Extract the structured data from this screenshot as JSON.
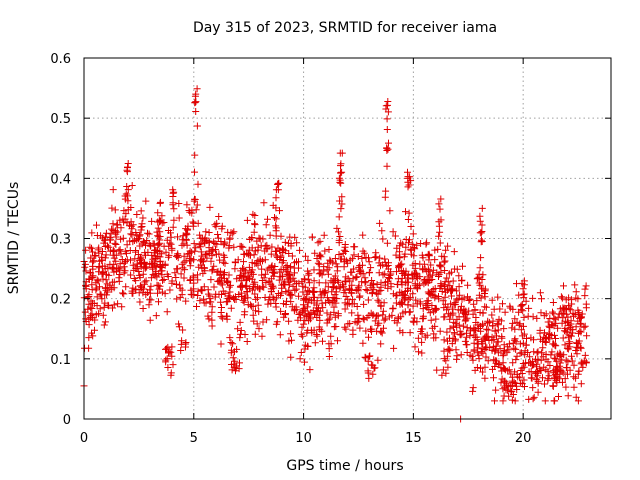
{
  "chart_data": {
    "type": "scatter",
    "title": "Day 315 of 2023, SRMTID for receiver iama",
    "xlabel": "GPS time / hours",
    "ylabel": "SRMTID / TECUs",
    "xlim": [
      0,
      24
    ],
    "ylim": [
      0,
      0.6
    ],
    "xticks": [
      0,
      5,
      10,
      15,
      20
    ],
    "yticks": [
      0,
      0.1,
      0.2,
      0.3,
      0.4,
      0.5,
      0.6
    ],
    "xtick_labels": [
      "0",
      "5",
      "10",
      "15",
      "20"
    ],
    "ytick_labels": [
      "0",
      "0.1",
      "0.2",
      "0.3",
      "0.4",
      "0.5",
      "0.6"
    ],
    "grid": true,
    "marker": "plus",
    "color": "#e00000",
    "series": [
      {
        "name": "SRMTID",
        "x_range": [
          0,
          22.9
        ],
        "samples": 2200,
        "trend": [
          {
            "x": 0.0,
            "y": 0.2
          },
          {
            "x": 1.0,
            "y": 0.25
          },
          {
            "x": 2.0,
            "y": 0.28
          },
          {
            "x": 3.0,
            "y": 0.26
          },
          {
            "x": 4.0,
            "y": 0.25
          },
          {
            "x": 5.0,
            "y": 0.27
          },
          {
            "x": 6.0,
            "y": 0.24
          },
          {
            "x": 7.0,
            "y": 0.22
          },
          {
            "x": 8.0,
            "y": 0.25
          },
          {
            "x": 9.0,
            "y": 0.24
          },
          {
            "x": 10.0,
            "y": 0.2
          },
          {
            "x": 11.0,
            "y": 0.21
          },
          {
            "x": 12.0,
            "y": 0.23
          },
          {
            "x": 13.0,
            "y": 0.2
          },
          {
            "x": 14.0,
            "y": 0.23
          },
          {
            "x": 15.0,
            "y": 0.22
          },
          {
            "x": 16.0,
            "y": 0.21
          },
          {
            "x": 17.0,
            "y": 0.18
          },
          {
            "x": 18.0,
            "y": 0.14
          },
          {
            "x": 19.0,
            "y": 0.11
          },
          {
            "x": 20.0,
            "y": 0.12
          },
          {
            "x": 21.0,
            "y": 0.11
          },
          {
            "x": 22.0,
            "y": 0.13
          },
          {
            "x": 22.9,
            "y": 0.14
          }
        ],
        "peaks": [
          {
            "x": 2.0,
            "y": 0.43
          },
          {
            "x": 3.5,
            "y": 0.37
          },
          {
            "x": 4.1,
            "y": 0.4
          },
          {
            "x": 5.1,
            "y": 0.57
          },
          {
            "x": 8.8,
            "y": 0.41
          },
          {
            "x": 11.7,
            "y": 0.45
          },
          {
            "x": 13.8,
            "y": 0.55
          },
          {
            "x": 14.8,
            "y": 0.42
          },
          {
            "x": 16.2,
            "y": 0.37
          },
          {
            "x": 18.1,
            "y": 0.35
          },
          {
            "x": 20.0,
            "y": 0.23
          },
          {
            "x": 21.8,
            "y": 0.23
          }
        ],
        "dips": [
          {
            "x": 3.9,
            "y": 0.07
          },
          {
            "x": 4.5,
            "y": 0.11
          },
          {
            "x": 6.9,
            "y": 0.08
          },
          {
            "x": 13.1,
            "y": 0.06
          },
          {
            "x": 16.5,
            "y": 0.07
          },
          {
            "x": 19.3,
            "y": 0.04
          },
          {
            "x": 20.5,
            "y": 0.05
          },
          {
            "x": 21.7,
            "y": 0.06
          }
        ],
        "outliers": [
          {
            "x": 0.0,
            "y": 0.055
          },
          {
            "x": 17.15,
            "y": 0.0
          }
        ]
      }
    ]
  }
}
